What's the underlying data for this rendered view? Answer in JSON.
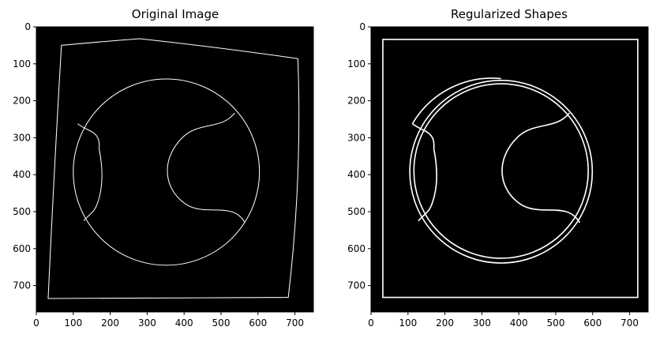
{
  "panels": [
    {
      "title": "Original Image",
      "x_ticks": [
        "0",
        "100",
        "200",
        "300",
        "400",
        "500",
        "600",
        "700"
      ],
      "y_ticks": [
        "0",
        "100",
        "200",
        "300",
        "400",
        "500",
        "600",
        "700"
      ]
    },
    {
      "title": "Regularized Shapes",
      "x_ticks": [
        "0",
        "100",
        "200",
        "300",
        "400",
        "500",
        "600",
        "700"
      ],
      "y_ticks": [
        "0",
        "100",
        "200",
        "300",
        "400",
        "500",
        "600",
        "700"
      ]
    }
  ],
  "colors": {
    "background": "#000000",
    "stroke": "#ffffff",
    "axis": "#000000"
  }
}
